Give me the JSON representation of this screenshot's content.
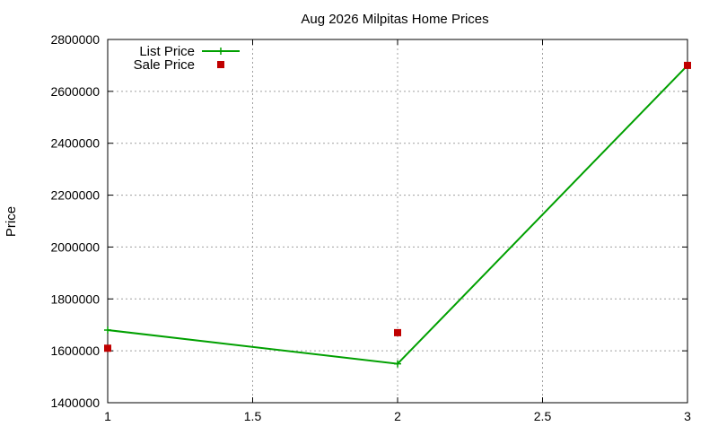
{
  "chart_data": {
    "type": "line",
    "title": "Aug 2026 Milpitas Home Prices",
    "xlabel": "",
    "ylabel": "Price",
    "xlim": [
      1,
      3
    ],
    "ylim": [
      1400000,
      2800000
    ],
    "x_ticks": [
      1,
      1.5,
      2,
      2.5,
      3
    ],
    "x_tick_labels": [
      "1",
      "1.5",
      "2",
      "2.5",
      "3"
    ],
    "y_ticks": [
      1400000,
      1600000,
      1800000,
      2000000,
      2200000,
      2400000,
      2600000,
      2800000
    ],
    "y_tick_labels": [
      "1400000",
      "1600000",
      "1800000",
      "2000000",
      "2200000",
      "2400000",
      "2600000",
      "2800000"
    ],
    "grid": true,
    "legend_position": "top-left",
    "series": [
      {
        "name": "List Price",
        "style": "linespoints",
        "marker": "plus",
        "color": "#00a000",
        "x": [
          1,
          2,
          3
        ],
        "y": [
          1680000,
          1550000,
          2700000
        ]
      },
      {
        "name": "Sale Price",
        "style": "points",
        "marker": "square",
        "color": "#c00000",
        "x": [
          1,
          2,
          3
        ],
        "y": [
          1610000,
          1670000,
          2700000
        ]
      }
    ]
  }
}
